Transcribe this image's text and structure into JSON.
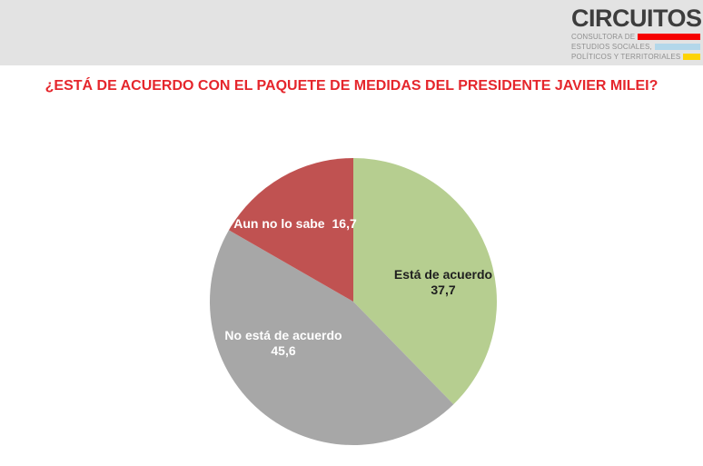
{
  "logo": {
    "name": "CIRCUITOS",
    "lines": [
      {
        "text": "CONSULTORA DE",
        "bar_color": "#f60000"
      },
      {
        "text": "ESTUDIOS SOCIALES,",
        "bar_color": "#b3d7ea"
      },
      {
        "text": "POLÍTICOS Y TERRITORIALES",
        "bar_color": "#fdd304"
      }
    ]
  },
  "chart_data": {
    "type": "pie",
    "title": "¿ESTÁ DE ACUERDO CON EL PAQUETE DE MEDIDAS DEL PRESIDENTE JAVIER MILEI?",
    "title_color": "#e5262c",
    "start_angle_deg": 0,
    "direction": "clockwise",
    "legend_position": "labels-inside-slices",
    "slices": [
      {
        "label": "Está de acuerdo",
        "value": 37.7,
        "display_value": "37,7",
        "color": "#b6ce90",
        "text_color": "#1f1f1f"
      },
      {
        "label": "No está de acuerdo",
        "value": 45.6,
        "display_value": "45,6",
        "color": "#a7a7a7",
        "text_color": "#ffffff"
      },
      {
        "label": "Aun no lo sabe",
        "value": 16.7,
        "display_value": "16,7",
        "color": "#c05251",
        "text_color": "#ffffff"
      }
    ]
  }
}
